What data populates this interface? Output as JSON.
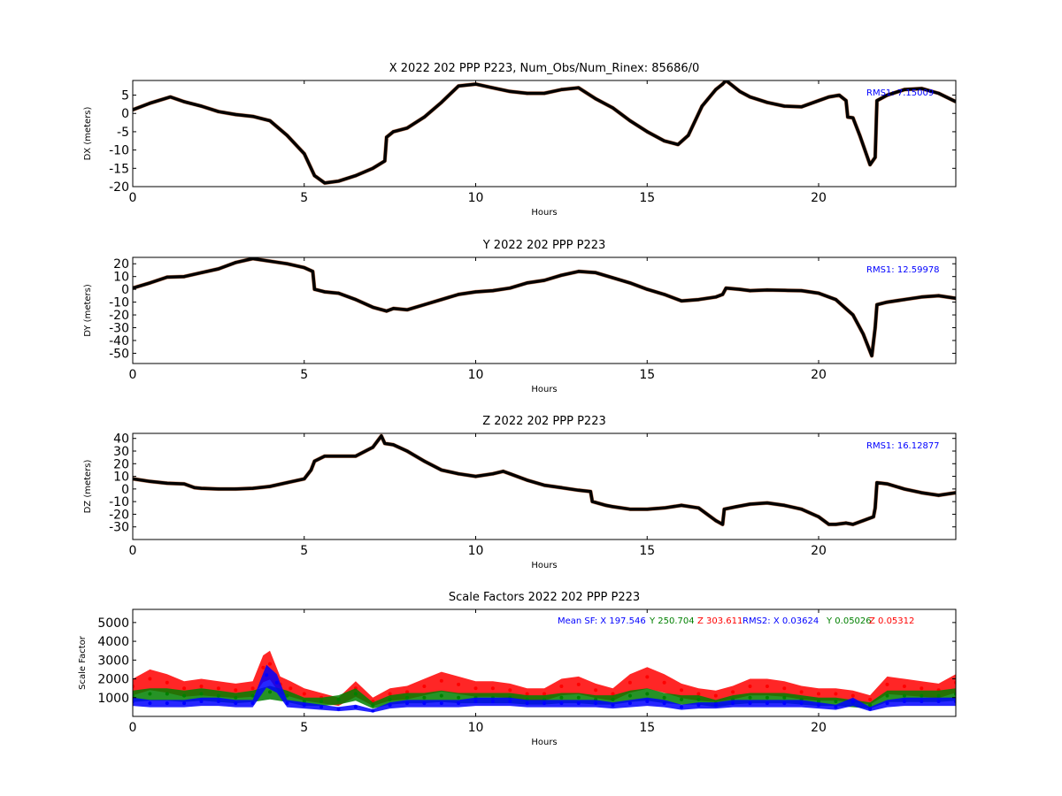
{
  "chart_data": [
    {
      "type": "line",
      "title": "X 2022 202 PPP  P223, Num_Obs/Num_Rinex: 85686/0",
      "xlabel": "Hours",
      "ylabel": "DX (meters)",
      "xlim": [
        0,
        24
      ],
      "ylim": [
        -20,
        9
      ],
      "x_ticks": [
        0,
        5,
        10,
        15,
        20
      ],
      "y_ticks": [
        -20,
        -15,
        -10,
        -5,
        0,
        5
      ],
      "annotation": "RMS1:  7.15009",
      "annotation_color": "#0000ff",
      "grid": false,
      "series": [
        {
          "color": "#000000",
          "x": [
            0,
            0.5,
            1.1,
            1.5,
            2.0,
            2.5,
            3.0,
            3.5,
            4.0,
            4.5,
            5.0,
            5.3,
            5.6,
            6.0,
            6.5,
            7.0,
            7.35,
            7.4,
            7.6,
            8.0,
            8.5,
            9.0,
            9.5,
            10.0,
            10.5,
            11.0,
            11.5,
            12.0,
            12.5,
            13.0,
            13.5,
            14.0,
            14.5,
            15.0,
            15.5,
            15.9,
            16.2,
            16.6,
            17.0,
            17.2,
            17.3,
            17.7,
            18.0,
            18.5,
            19.0,
            19.5,
            20.0,
            20.3,
            20.6,
            20.8,
            20.85,
            21.0,
            21.2,
            21.5,
            21.65,
            21.7,
            22.0,
            22.5,
            23.0,
            23.5,
            24.0
          ],
          "values": [
            1.0,
            2.8,
            4.5,
            3.2,
            2.0,
            0.5,
            -0.3,
            -0.8,
            -2.0,
            -6.0,
            -11.0,
            -17.0,
            -19.0,
            -18.5,
            -17.0,
            -15.0,
            -13.0,
            -6.5,
            -5.0,
            -4.0,
            -1.0,
            3.0,
            7.5,
            8.0,
            7.0,
            6.0,
            5.5,
            5.5,
            6.5,
            7.0,
            4.0,
            1.5,
            -2.0,
            -5.0,
            -7.5,
            -8.5,
            -6.0,
            2.0,
            6.5,
            8.0,
            9.0,
            6.0,
            4.5,
            3.0,
            2.0,
            1.8,
            3.5,
            4.5,
            5.0,
            3.5,
            -1.0,
            -1.2,
            -6.0,
            -14.0,
            -12.0,
            3.5,
            5.0,
            6.5,
            6.8,
            5.5,
            3.2
          ]
        }
      ]
    },
    {
      "type": "line",
      "title": "Y 2022 202 PPP  P223",
      "xlabel": "Hours",
      "ylabel": "DY (meters)",
      "xlim": [
        0,
        24
      ],
      "ylim": [
        -58,
        25
      ],
      "x_ticks": [
        0,
        5,
        10,
        15,
        20
      ],
      "y_ticks": [
        -50,
        -40,
        -30,
        -20,
        -10,
        0,
        10,
        20
      ],
      "annotation": "RMS1: 12.59978",
      "annotation_color": "#0000ff",
      "grid": false,
      "series": [
        {
          "color": "#000000",
          "x": [
            0,
            0.5,
            1.0,
            1.5,
            2.0,
            2.5,
            3.0,
            3.5,
            4.0,
            4.5,
            5.0,
            5.25,
            5.3,
            5.6,
            6.0,
            6.5,
            7.0,
            7.4,
            7.6,
            8.0,
            8.5,
            9.0,
            9.5,
            10.0,
            10.5,
            11.0,
            11.5,
            12.0,
            12.5,
            13.0,
            13.5,
            14.0,
            14.5,
            15.0,
            15.5,
            16.0,
            16.5,
            17.0,
            17.2,
            17.3,
            17.7,
            18.0,
            18.5,
            19.0,
            19.5,
            20.0,
            20.5,
            21.0,
            21.3,
            21.55,
            21.65,
            21.7,
            22.0,
            22.5,
            23.0,
            23.5,
            24.0
          ],
          "values": [
            1.0,
            5.0,
            9.5,
            10.0,
            13.0,
            16.0,
            21.0,
            24.0,
            22.0,
            20.0,
            17.0,
            14.0,
            0.0,
            -2.0,
            -3.0,
            -8.0,
            -14.0,
            -17.0,
            -15.0,
            -16.0,
            -12.0,
            -8.0,
            -4.0,
            -2.0,
            -1.0,
            1.0,
            5.0,
            7.0,
            11.0,
            14.0,
            13.0,
            9.0,
            5.0,
            0.0,
            -4.0,
            -9.0,
            -8.0,
            -6.0,
            -4.0,
            1.0,
            0.0,
            -1.0,
            -0.5,
            -0.8,
            -1.0,
            -3.0,
            -8.0,
            -20.0,
            -35.0,
            -52.0,
            -30.0,
            -12.0,
            -10.0,
            -8.0,
            -6.0,
            -5.0,
            -7.0
          ]
        }
      ]
    },
    {
      "type": "line",
      "title": "Z 2022 202 PPP  P223",
      "xlabel": "Hours",
      "ylabel": "DZ (meters)",
      "xlim": [
        0,
        24
      ],
      "ylim": [
        -40,
        44
      ],
      "x_ticks": [
        0,
        5,
        10,
        15,
        20
      ],
      "y_ticks": [
        -30,
        -20,
        -10,
        0,
        10,
        20,
        30,
        40
      ],
      "annotation": "RMS1: 16.12877",
      "annotation_color": "#0000ff",
      "grid": false,
      "series": [
        {
          "color": "#000000",
          "x": [
            0,
            0.5,
            1.0,
            1.5,
            1.8,
            2.0,
            2.5,
            3.0,
            3.5,
            4.0,
            4.5,
            5.0,
            5.2,
            5.3,
            5.6,
            6.0,
            6.5,
            7.0,
            7.25,
            7.35,
            7.6,
            8.0,
            8.5,
            9.0,
            9.5,
            10.0,
            10.5,
            10.8,
            11.0,
            11.5,
            12.0,
            12.5,
            13.0,
            13.35,
            13.4,
            13.8,
            14.0,
            14.5,
            15.0,
            15.5,
            16.0,
            16.5,
            17.0,
            17.2,
            17.25,
            17.6,
            18.0,
            18.5,
            19.0,
            19.5,
            20.0,
            20.3,
            20.5,
            20.8,
            21.0,
            21.3,
            21.6,
            21.65,
            21.7,
            22.0,
            22.5,
            23.0,
            23.5,
            24.0
          ],
          "values": [
            8.0,
            6.0,
            4.5,
            4.0,
            1.0,
            0.5,
            0.0,
            0.0,
            0.5,
            2.0,
            5.0,
            8.0,
            15.0,
            22.0,
            26.0,
            26.0,
            26.0,
            33.0,
            42.0,
            36.0,
            35.0,
            30.0,
            22.0,
            15.0,
            12.0,
            10.0,
            12.0,
            14.0,
            12.0,
            7.0,
            3.0,
            1.0,
            -1.0,
            -2.0,
            -10.0,
            -13.0,
            -14.0,
            -16.0,
            -16.0,
            -15.0,
            -13.0,
            -15.0,
            -25.0,
            -28.0,
            -16.0,
            -14.0,
            -12.0,
            -11.0,
            -13.0,
            -16.0,
            -22.0,
            -28.0,
            -28.0,
            -27.0,
            -28.0,
            -25.0,
            -22.0,
            -15.0,
            5.0,
            4.0,
            0.0,
            -3.0,
            -5.0,
            -3.0
          ]
        }
      ]
    },
    {
      "type": "scatter",
      "title": "Scale Factors 2022 202 PPP  P223",
      "xlabel": "Hours",
      "ylabel": "Scale Factor",
      "xlim": [
        0,
        24
      ],
      "ylim": [
        0,
        5700
      ],
      "x_ticks": [
        0,
        5,
        10,
        15,
        20
      ],
      "y_ticks": [
        1000,
        2000,
        3000,
        4000,
        5000
      ],
      "annotations": [
        {
          "text": "Mean SF: X 197.546",
          "color": "#0000ff"
        },
        {
          "text": "Y 250.704",
          "color": "#008000"
        },
        {
          "text": "Z 303.611",
          "color": "#ff0000"
        },
        {
          "text": "RMS2: X  0.03624",
          "color": "#0000ff"
        },
        {
          "text": "Y  0.05026",
          "color": "#008000"
        },
        {
          "text": "Z  0.05312",
          "color": "#ff0000"
        }
      ],
      "grid": false,
      "series": [
        {
          "color": "#ff0000",
          "x": [
            0,
            0.5,
            1.0,
            1.5,
            2.0,
            2.5,
            3.0,
            3.5,
            3.8,
            4.0,
            4.3,
            4.6,
            5.0,
            5.5,
            6.0,
            6.5,
            7.0,
            7.5,
            8.0,
            8.5,
            9.0,
            9.5,
            10.0,
            10.5,
            11.0,
            11.5,
            12.0,
            12.5,
            13.0,
            13.5,
            14.0,
            14.5,
            15.0,
            15.5,
            16.0,
            16.5,
            17.0,
            17.5,
            18.0,
            18.5,
            19.0,
            19.5,
            20.0,
            20.5,
            21.0,
            21.5,
            22.0,
            22.5,
            23.0,
            23.5,
            24.0
          ],
          "values": [
            1600,
            2000,
            1800,
            1500,
            1600,
            1500,
            1400,
            1500,
            2600,
            2800,
            1700,
            1500,
            1200,
            1000,
            800,
            1500,
            800,
            1200,
            1300,
            1600,
            1900,
            1700,
            1500,
            1500,
            1400,
            1200,
            1200,
            1600,
            1700,
            1400,
            1200,
            1800,
            2100,
            1800,
            1400,
            1200,
            1100,
            1300,
            1600,
            1600,
            1500,
            1300,
            1200,
            1200,
            1100,
            900,
            1700,
            1600,
            1500,
            1400,
            1800
          ]
        },
        {
          "color": "#008000",
          "x": [
            0,
            0.5,
            1.0,
            1.5,
            2.0,
            2.5,
            3.0,
            3.5,
            4.0,
            4.5,
            5.0,
            5.5,
            6.0,
            6.5,
            7.0,
            7.5,
            8.0,
            8.5,
            9.0,
            9.5,
            10.0,
            10.5,
            11.0,
            11.5,
            12.0,
            12.5,
            13.0,
            13.5,
            14.0,
            14.5,
            15.0,
            15.5,
            16.0,
            16.5,
            17.0,
            17.5,
            18.0,
            18.5,
            19.0,
            19.5,
            20.0,
            20.5,
            21.0,
            21.5,
            22.0,
            22.5,
            23.0,
            23.5,
            24.0
          ],
          "values": [
            1100,
            1200,
            1200,
            1100,
            1200,
            1100,
            1000,
            1100,
            1300,
            1100,
            800,
            800,
            900,
            1200,
            600,
            900,
            1000,
            1000,
            1100,
            1000,
            1000,
            1000,
            1000,
            900,
            900,
            1000,
            1000,
            900,
            900,
            1100,
            1200,
            1000,
            900,
            900,
            700,
            900,
            1000,
            1000,
            1000,
            900,
            800,
            800,
            700,
            600,
            1100,
            1100,
            1100,
            1100,
            1200
          ]
        },
        {
          "color": "#0000ff",
          "x": [
            0,
            0.5,
            1.0,
            1.5,
            2.0,
            2.5,
            3.0,
            3.5,
            3.9,
            4.2,
            4.5,
            5.0,
            5.5,
            6.0,
            6.5,
            7.0,
            7.5,
            8.0,
            8.5,
            9.0,
            9.5,
            10.0,
            10.5,
            11.0,
            11.5,
            12.0,
            12.5,
            13.0,
            13.5,
            14.0,
            14.5,
            15.0,
            15.5,
            16.0,
            16.5,
            17.0,
            17.5,
            18.0,
            18.5,
            19.0,
            19.5,
            20.0,
            20.5,
            21.0,
            21.5,
            22.0,
            22.5,
            23.0,
            23.5,
            24.0
          ],
          "values": [
            800,
            700,
            700,
            700,
            800,
            800,
            700,
            700,
            2200,
            1800,
            700,
            600,
            500,
            400,
            500,
            300,
            600,
            700,
            700,
            700,
            700,
            800,
            800,
            800,
            700,
            700,
            700,
            700,
            700,
            600,
            700,
            800,
            700,
            500,
            600,
            600,
            700,
            700,
            700,
            700,
            700,
            600,
            500,
            800,
            400,
            700,
            800,
            800,
            800,
            800
          ]
        }
      ]
    }
  ]
}
